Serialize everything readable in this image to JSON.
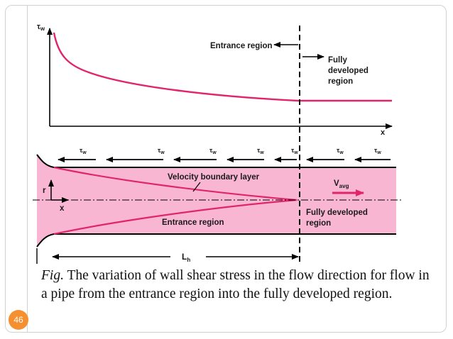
{
  "colors": {
    "curve": "#e0256b",
    "pipe_fill": "#f9b6d3",
    "badge": "#f58f2f"
  },
  "plot": {
    "y_axis_label": "τ",
    "y_axis_sub": "w",
    "x_axis_label": "x",
    "entrance_label": "Entrance region",
    "fully_developed_label": [
      "Fully",
      "developed",
      "region"
    ]
  },
  "pipe": {
    "shear_label": "τ",
    "shear_sub": "w",
    "velocity_bl_label": "Velocity boundary layer",
    "vavg_label": "V",
    "vavg_sub": "avg",
    "entrance_label": "Entrance region",
    "fully_developed_label": [
      "Fully developed",
      "region"
    ],
    "r_label": "r",
    "x_label": "x",
    "length_label": "L",
    "length_sub": "h"
  },
  "caption": {
    "prefix": "Fig.",
    "text": " The variation of wall shear stress in the flow direction for flow in a pipe from the entrance region into the fully developed region."
  },
  "page_number": "46"
}
